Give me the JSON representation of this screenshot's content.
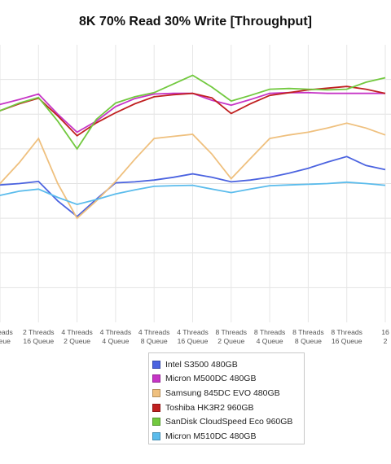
{
  "chart_data": {
    "type": "line",
    "title": "8K 70% Read 30% Write [Throughput]",
    "xlabel": "",
    "ylabel": "",
    "grid": true,
    "legend_position": "bottom",
    "categories": [
      [
        "",
        ""
      ],
      [
        "2 Threads",
        "16 Queue"
      ],
      [
        "4 Threads",
        "2 Queue"
      ],
      [
        "4 Threads",
        "4 Queue"
      ],
      [
        "4 Threads",
        "8 Queue"
      ],
      [
        "4 Threads",
        "16 Queue"
      ],
      [
        "8 Threads",
        "2 Queue"
      ],
      [
        "8 Threads",
        "4 Queue"
      ],
      [
        "8 Threads",
        "8 Queue"
      ],
      [
        "8 Threads",
        "16 Queue"
      ],
      [
        "16",
        "2"
      ]
    ],
    "x_visible_labels": [
      [
        "Threads",
        "Queue"
      ],
      [
        "2 Threads",
        "16 Queue"
      ],
      [
        "4 Threads",
        "2 Queue"
      ],
      [
        "4 Threads",
        "4 Queue"
      ],
      [
        "4 Threads",
        "8 Queue"
      ],
      [
        "4 Threads",
        "16 Queue"
      ],
      [
        "8 Threads",
        "2 Queue"
      ],
      [
        "8 Threads",
        "4 Queue"
      ],
      [
        "8 Threads",
        "8 Queue"
      ],
      [
        "8 Threads",
        "16 Queue"
      ],
      [
        "16",
        "2"
      ]
    ],
    "ylim": [
      0,
      8
    ],
    "y_gridlines": [
      1,
      2,
      3,
      4,
      5,
      6,
      7
    ],
    "series": [
      {
        "name": "Intel S3500 480GB",
        "color": "#4b63e0",
        "points": [
          [
            -0.5,
            3.71
          ],
          [
            0,
            3.96
          ],
          [
            0.5,
            4.0
          ],
          [
            1,
            4.06
          ],
          [
            1.5,
            3.5
          ],
          [
            2,
            3.05
          ],
          [
            2.5,
            3.55
          ],
          [
            3,
            4.02
          ],
          [
            3.5,
            4.05
          ],
          [
            4,
            4.1
          ],
          [
            4.5,
            4.18
          ],
          [
            5,
            4.28
          ],
          [
            5.5,
            4.18
          ],
          [
            6,
            4.05
          ],
          [
            6.5,
            4.1
          ],
          [
            7,
            4.18
          ],
          [
            7.5,
            4.3
          ],
          [
            8,
            4.44
          ],
          [
            8.5,
            4.62
          ],
          [
            9,
            4.78
          ],
          [
            9.5,
            4.52
          ],
          [
            10,
            4.4
          ]
        ]
      },
      {
        "name": "Micron M500DC 480GB",
        "color": "#c635c6",
        "points": [
          [
            -0.5,
            5.86
          ],
          [
            0,
            6.28
          ],
          [
            0.5,
            6.42
          ],
          [
            1,
            6.58
          ],
          [
            1.5,
            6.0
          ],
          [
            2,
            5.48
          ],
          [
            2.5,
            5.8
          ],
          [
            3,
            6.22
          ],
          [
            3.5,
            6.45
          ],
          [
            4,
            6.58
          ],
          [
            4.5,
            6.6
          ],
          [
            5,
            6.6
          ],
          [
            5.5,
            6.4
          ],
          [
            6,
            6.26
          ],
          [
            6.5,
            6.42
          ],
          [
            7,
            6.6
          ],
          [
            7.5,
            6.62
          ],
          [
            8,
            6.62
          ],
          [
            8.5,
            6.6
          ],
          [
            9,
            6.6
          ],
          [
            9.5,
            6.6
          ],
          [
            10,
            6.6
          ]
        ]
      },
      {
        "name": "Samsung 845DC EVO 480GB",
        "color": "#efc07e",
        "points": [
          [
            -0.5,
            3.78
          ],
          [
            0,
            4.0
          ],
          [
            0.5,
            4.6
          ],
          [
            1,
            5.3
          ],
          [
            1.5,
            4.0
          ],
          [
            2,
            3.0
          ],
          [
            2.5,
            3.5
          ],
          [
            3,
            4.06
          ],
          [
            3.5,
            4.7
          ],
          [
            4,
            5.3
          ],
          [
            4.5,
            5.36
          ],
          [
            5,
            5.42
          ],
          [
            5.5,
            4.85
          ],
          [
            6,
            4.14
          ],
          [
            6.5,
            4.72
          ],
          [
            7,
            5.3
          ],
          [
            7.5,
            5.4
          ],
          [
            8,
            5.48
          ],
          [
            8.5,
            5.6
          ],
          [
            9,
            5.74
          ],
          [
            9.5,
            5.6
          ],
          [
            10,
            5.4
          ]
        ]
      },
      {
        "name": "Toshiba HK3R2 960GB",
        "color": "#c02020",
        "points": [
          [
            -0.5,
            5.7
          ],
          [
            0,
            6.1
          ],
          [
            0.5,
            6.3
          ],
          [
            1,
            6.46
          ],
          [
            1.5,
            5.95
          ],
          [
            2,
            5.38
          ],
          [
            2.5,
            5.75
          ],
          [
            3,
            6.04
          ],
          [
            3.5,
            6.3
          ],
          [
            4,
            6.5
          ],
          [
            4.5,
            6.56
          ],
          [
            5,
            6.6
          ],
          [
            5.5,
            6.47
          ],
          [
            6,
            6.02
          ],
          [
            6.5,
            6.3
          ],
          [
            7,
            6.54
          ],
          [
            7.5,
            6.62
          ],
          [
            8,
            6.7
          ],
          [
            8.5,
            6.75
          ],
          [
            9,
            6.8
          ],
          [
            9.5,
            6.72
          ],
          [
            10,
            6.6
          ]
        ]
      },
      {
        "name": "SanDisk CloudSpeed Eco 960GB",
        "color": "#72c93f",
        "points": [
          [
            -0.5,
            5.72
          ],
          [
            0,
            6.1
          ],
          [
            0.5,
            6.32
          ],
          [
            1,
            6.48
          ],
          [
            1.5,
            5.8
          ],
          [
            2,
            5.0
          ],
          [
            2.5,
            5.85
          ],
          [
            3,
            6.32
          ],
          [
            3.5,
            6.5
          ],
          [
            4,
            6.62
          ],
          [
            4.5,
            6.87
          ],
          [
            5,
            7.12
          ],
          [
            5.5,
            6.78
          ],
          [
            6,
            6.38
          ],
          [
            6.5,
            6.54
          ],
          [
            7,
            6.72
          ],
          [
            7.5,
            6.74
          ],
          [
            8,
            6.72
          ],
          [
            8.5,
            6.7
          ],
          [
            9,
            6.72
          ],
          [
            9.5,
            6.92
          ],
          [
            10,
            7.05
          ]
        ]
      },
      {
        "name": "Micron M510DC 480GB",
        "color": "#5bbcec",
        "points": [
          [
            -0.5,
            3.45
          ],
          [
            0,
            3.66
          ],
          [
            0.5,
            3.78
          ],
          [
            1,
            3.84
          ],
          [
            1.5,
            3.6
          ],
          [
            2,
            3.4
          ],
          [
            2.5,
            3.54
          ],
          [
            3,
            3.7
          ],
          [
            3.5,
            3.82
          ],
          [
            4,
            3.92
          ],
          [
            4.5,
            3.94
          ],
          [
            5,
            3.95
          ],
          [
            5.5,
            3.84
          ],
          [
            6,
            3.74
          ],
          [
            6.5,
            3.84
          ],
          [
            7,
            3.94
          ],
          [
            7.5,
            3.96
          ],
          [
            8,
            3.98
          ],
          [
            8.5,
            4.0
          ],
          [
            9,
            4.04
          ],
          [
            9.5,
            4.0
          ],
          [
            10,
            3.95
          ]
        ]
      }
    ]
  }
}
